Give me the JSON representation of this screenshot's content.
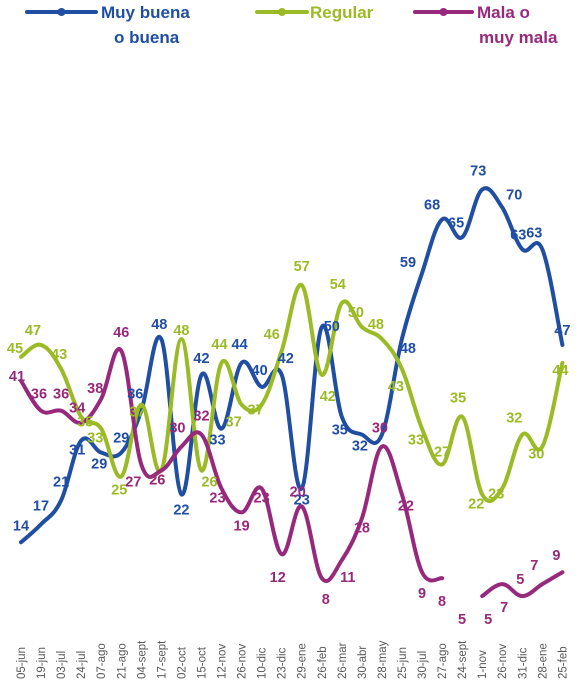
{
  "chart_data": {
    "type": "line",
    "x": [
      "05-jun",
      "19-jun",
      "03-jul",
      "24-jul",
      "07-ago",
      "21-ago",
      "04-sept",
      "17-sept",
      "02-oct",
      "15-oct",
      "12-nov",
      "26-nov",
      "10-dic",
      "23-dic",
      "29-ene",
      "26-feb",
      "26-mar",
      "30-abr",
      "28-may",
      "25-jun",
      "30-jul",
      "27-ago",
      "24-sept",
      "1-nov",
      "26-nov",
      "31-dic",
      "28-ene",
      "25-feb"
    ],
    "x_visible": [
      "05-jun",
      "19-jun",
      "03-jul",
      "24-jul",
      "07-ago",
      "21-ago",
      "04-sept",
      "17-sept",
      "02-oct",
      "15-oct",
      "12-nov",
      "26-nov",
      "10-dic",
      "23-dic",
      "29-ene",
      "26-feb",
      "26-mar",
      "30-abr",
      "28-may",
      "25-jun",
      "30-jul",
      "27-ago",
      "24-sept",
      "1-nov",
      "26-nov",
      "31-dic",
      "28-ene",
      "25-feb"
    ],
    "x_tick_labels": [
      "05-jun",
      "19-jun",
      "03-jul",
      "24-jul",
      "07-ago",
      "21-ago",
      "04-sept",
      "17-sept",
      "02-oct",
      "15-oct",
      "12-nov",
      "26-nov",
      "10-dic",
      "23-dic",
      "29-ene",
      "26-feb",
      "26-mar",
      "30-abr",
      "28-may",
      "25-jun",
      "30-jul",
      "27-ago",
      "24-sept",
      "1-nov",
      "26-nov",
      "31-dic",
      "28-ene",
      "25-feb"
    ],
    "legend_position": "top",
    "grid": false,
    "series": [
      {
        "name_lines": [
          "Muy buena",
          "o buena"
        ],
        "color": "#1f4ea3",
        "values": [
          14,
          17,
          21,
          31,
          29,
          29,
          36,
          48,
          22,
          42,
          33,
          44,
          40,
          42,
          23,
          50,
          35,
          32,
          32,
          48,
          59,
          68,
          65,
          73,
          70,
          63,
          63,
          47
        ],
        "point_labels": [
          14,
          17,
          21,
          31,
          29,
          29,
          36,
          48,
          22,
          42,
          33,
          44,
          40,
          42,
          23,
          50,
          35,
          32,
          null,
          48,
          59,
          68,
          65,
          73,
          70,
          63,
          63,
          47
        ]
      },
      {
        "name_lines": [
          "Regular"
        ],
        "color": "#9bbb26",
        "values": [
          45,
          47,
          43,
          35,
          33,
          25,
          37,
          26,
          48,
          26,
          44,
          37,
          37,
          46,
          57,
          42,
          54,
          50,
          48,
          43,
          33,
          27,
          35,
          22,
          23,
          32,
          30,
          44
        ],
        "point_labels": [
          45,
          47,
          43,
          35,
          33,
          25,
          37,
          26,
          48,
          26,
          44,
          37,
          37,
          46,
          57,
          42,
          54,
          50,
          48,
          43,
          33,
          27,
          35,
          22,
          23,
          32,
          30,
          44
        ]
      },
      {
        "name_lines": [
          "Mala o",
          "muy mala"
        ],
        "color": "#97297d",
        "values": [
          41,
          36,
          36,
          34,
          38,
          46,
          27,
          26,
          30,
          32,
          23,
          19,
          23,
          12,
          20,
          8,
          11,
          18,
          30,
          22,
          9,
          8,
          5,
          5,
          7,
          5,
          7,
          9
        ],
        "point_labels": [
          41,
          36,
          36,
          34,
          38,
          46,
          27,
          26,
          30,
          32,
          23,
          19,
          23,
          12,
          20,
          8,
          11,
          18,
          30,
          22,
          9,
          8,
          5,
          5,
          7,
          5,
          7,
          9
        ]
      }
    ]
  }
}
